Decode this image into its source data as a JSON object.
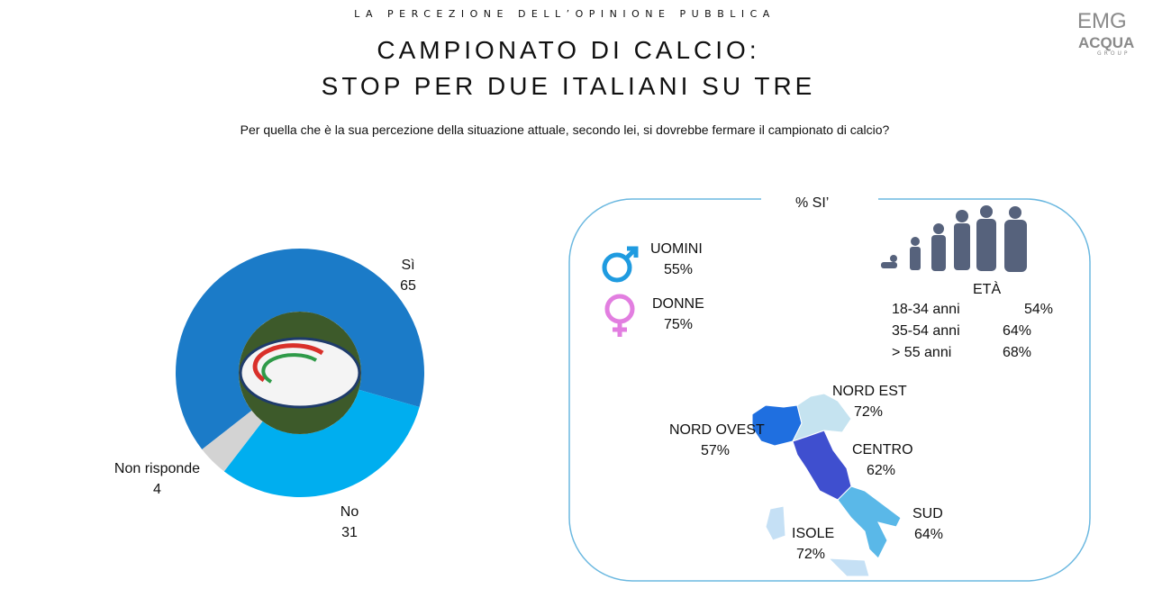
{
  "header": {
    "kicker": "LA PERCEZIONE DELL’OPINIONE PUBBLICA",
    "title": [
      "CAMPIONATO DI CALCIO:",
      "STOP PER DUE ITALIANI SU TRE"
    ],
    "question": "Per quella che è la sua percezione della situazione attuale, secondo lei, si dovrebbe fermare il campionato di calcio?"
  },
  "logo": {
    "line1": "EMG",
    "line2": "ACQUA",
    "line3": "GROUP"
  },
  "chart_data": {
    "type": "pie",
    "donut": true,
    "categories": [
      "Sì",
      "No",
      "Non risponde"
    ],
    "values": [
      65,
      31,
      4
    ],
    "colors": [
      "#1b7bc8",
      "#00aeef",
      "#d3d3d3"
    ]
  },
  "panel": {
    "title": "% SI’",
    "gender": [
      {
        "label": "UOMINI",
        "value": "55%"
      },
      {
        "label": "DONNE",
        "value": "75%"
      }
    ],
    "age": {
      "title": "ETÀ",
      "rows": [
        [
          "18-34 anni",
          "54%"
        ],
        [
          "35-54 anni",
          "64%"
        ],
        [
          "> 55 anni",
          "68%"
        ]
      ]
    },
    "regions": [
      {
        "label": "NORD EST",
        "value": "72%"
      },
      {
        "label": "NORD OVEST",
        "value": "57%"
      },
      {
        "label": "CENTRO",
        "value": "62%"
      },
      {
        "label": "SUD",
        "value": "64%"
      },
      {
        "label": "ISOLE",
        "value": "72%"
      }
    ]
  }
}
